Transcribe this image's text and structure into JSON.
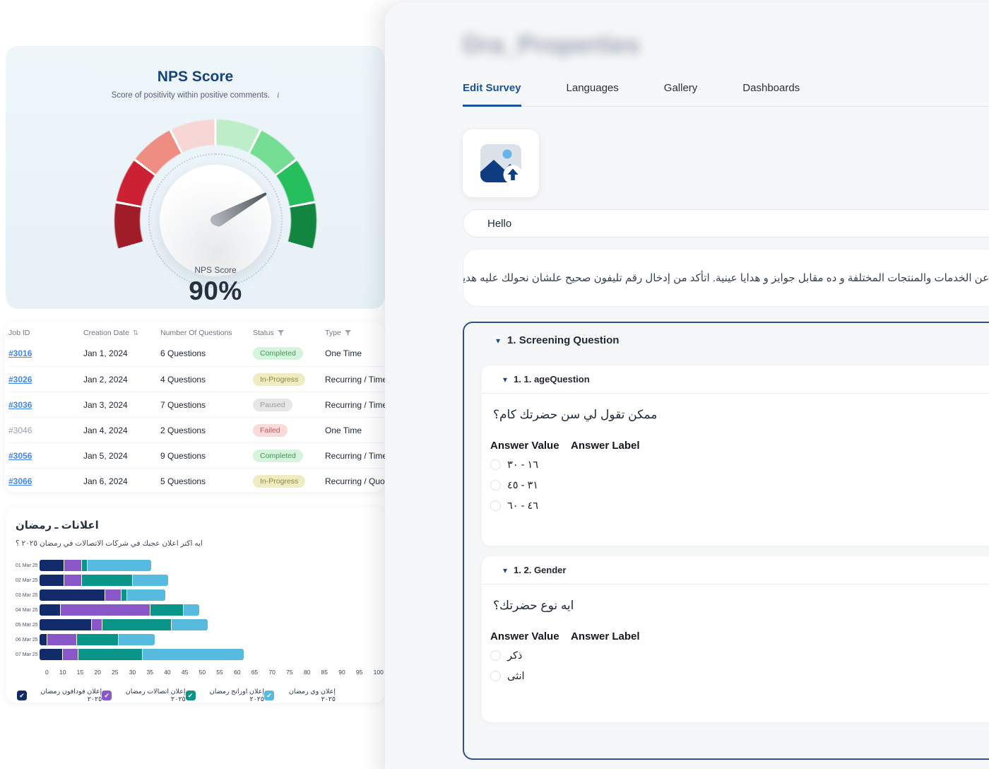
{
  "nps_card": {
    "title": "NPS Score",
    "subtitle": "Score of positivity within positive comments.",
    "info_icon": "i",
    "center_label": "NPS Score",
    "center_value": "90%"
  },
  "jobs_table": {
    "columns": [
      "Job ID",
      "Creation Date",
      "Number Of Questions",
      "Status",
      "Type"
    ],
    "rows": [
      {
        "job_id": "#3016",
        "link": true,
        "date": "Jan 1, 2024",
        "questions": "6 Questions",
        "status": "Completed",
        "type": "One Time"
      },
      {
        "job_id": "#3026",
        "link": true,
        "date": "Jan 2, 2024",
        "questions": "4 Questions",
        "status": "In-Progress",
        "type": "Recurring / Time"
      },
      {
        "job_id": "#3036",
        "link": true,
        "date": "Jan 3, 2024",
        "questions": "7 Questions",
        "status": "Paused",
        "type": "Recurring / Time"
      },
      {
        "job_id": "#3046",
        "link": false,
        "date": "Jan 4, 2024",
        "questions": "2 Questions",
        "status": "Failed",
        "type": "One Time"
      },
      {
        "job_id": "#3056",
        "link": true,
        "date": "Jan 5, 2024",
        "questions": "9 Questions",
        "status": "Completed",
        "type": "Recurring / Time"
      },
      {
        "job_id": "#3066",
        "link": true,
        "date": "Jan 6, 2024",
        "questions": "5 Questions",
        "status": "In-Progress",
        "type": "Recurring / Quota"
      }
    ]
  },
  "chart_data": [
    {
      "type": "gauge",
      "title": "NPS Score",
      "value_percent": 90,
      "display_value": "90%",
      "center_label": "NPS Score",
      "arc_span_degrees": 212,
      "segments": [
        "#a01c28",
        "#cb2132",
        "#ee8d81",
        "#f7d7d5",
        "#bdeec7",
        "#72dd93",
        "#25c05d",
        "#128540"
      ]
    },
    {
      "type": "bar",
      "orientation": "horizontal",
      "stacked": true,
      "title": "اعلانات ـ رمضان",
      "subtitle": "ايه اكتر اعلان عجبك في شركات الاتصالات في رمضان ٢٠٢٥ ؟",
      "categories": [
        "01 Mar 25",
        "02 Mar 25",
        "03 Mar 25",
        "04 Mar 25",
        "05 Mar 25",
        "06 Mar 25",
        "07 Mar 25"
      ],
      "series": [
        {
          "name": "إعلان فودافون رمضان ٢٠٢٥",
          "color": "#122c6b",
          "values": [
            7,
            7,
            19,
            6,
            15,
            2,
            6.5
          ]
        },
        {
          "name": "إعلان اتصالات رمضان ٢٠٢٥",
          "color": "#8a57c9",
          "values": [
            5,
            5,
            4.5,
            26,
            3,
            8.5,
            4.5
          ]
        },
        {
          "name": "إعلان اورانج رمضان ٢٠٢٥",
          "color": "#0b9488",
          "values": [
            1.5,
            14.5,
            1.5,
            9.5,
            20,
            12,
            18.5
          ]
        },
        {
          "name": "إعلان وي رمضان ٢٠٢٥",
          "color": "#57bbdf",
          "values": [
            18.5,
            10.5,
            11,
            4.5,
            10.5,
            10.5,
            29.5
          ]
        }
      ],
      "x_ticks": [
        "0",
        "10",
        "15",
        "20",
        "25",
        "30",
        "35",
        "40",
        "45",
        "50",
        "55",
        "60",
        "65",
        "70",
        "75",
        "80",
        "85",
        "90",
        "95",
        "100"
      ],
      "xlim": [
        0,
        100
      ],
      "legend_position": "bottom",
      "grid": false
    }
  ],
  "panel": {
    "title": "Dra_Properties",
    "tabs": [
      "Edit Survey",
      "Languages",
      "Gallery",
      "Dashboards"
    ],
    "active_tab": "Edit Survey",
    "hello_value": "Hello",
    "intro_text": "عن ارائها عن الخدمات والمنتجات المختلفة و ده مقابل جوايز و هدايا عينية. اتأكد من إدخال رقم تليفون صحيح علشان نحولك عليه هديتك",
    "screening": {
      "header": "1. Screening Question",
      "questions": [
        {
          "header": "1. 1. ageQuestion",
          "question": "ممكن تقول لي سن حضرتك كام؟",
          "value_header": "Answer Value",
          "label_header": "Answer Label",
          "options": [
            {
              "value": "١٦ - ٣٠",
              "label": "١٦ - ٣٠"
            },
            {
              "value": "٣١ - ٤٥",
              "label": "٣١ - ٤٥"
            },
            {
              "value": "٤٦ - ٦٠",
              "label": "٤٦ - ٦٠"
            }
          ]
        },
        {
          "header": "1. 2. Gender",
          "question": "ايه نوع حضرتك؟",
          "value_header": "Answer Value",
          "label_header": "Answer Label",
          "options": [
            {
              "value": "ذكر",
              "label": "ذكر"
            },
            {
              "value": "انثى",
              "label": "انثى"
            }
          ]
        }
      ]
    }
  }
}
